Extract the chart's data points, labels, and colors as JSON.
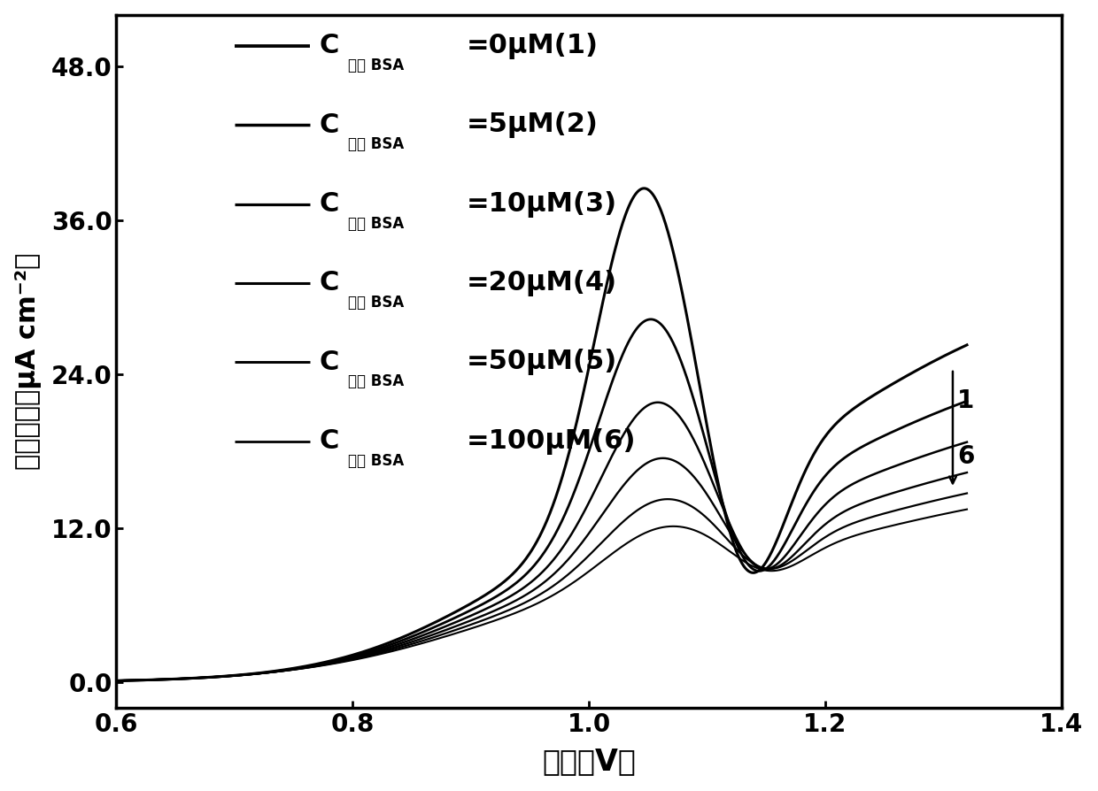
{
  "xlim": [
    0.6,
    1.4
  ],
  "ylim": [
    -2.0,
    52.0
  ],
  "xticks": [
    0.6,
    0.8,
    1.0,
    1.2,
    1.4
  ],
  "yticks": [
    0.0,
    12.0,
    24.0,
    36.0,
    48.0
  ],
  "line_color": "#000000",
  "line_widths": [
    2.2,
    2.0,
    1.8,
    1.7,
    1.6,
    1.5
  ],
  "background_color": "#ffffff",
  "conc_labels": [
    "0",
    "5",
    "10",
    "20",
    "50",
    "100"
  ],
  "nums": [
    "1",
    "2",
    "3",
    "4",
    "5",
    "6"
  ]
}
